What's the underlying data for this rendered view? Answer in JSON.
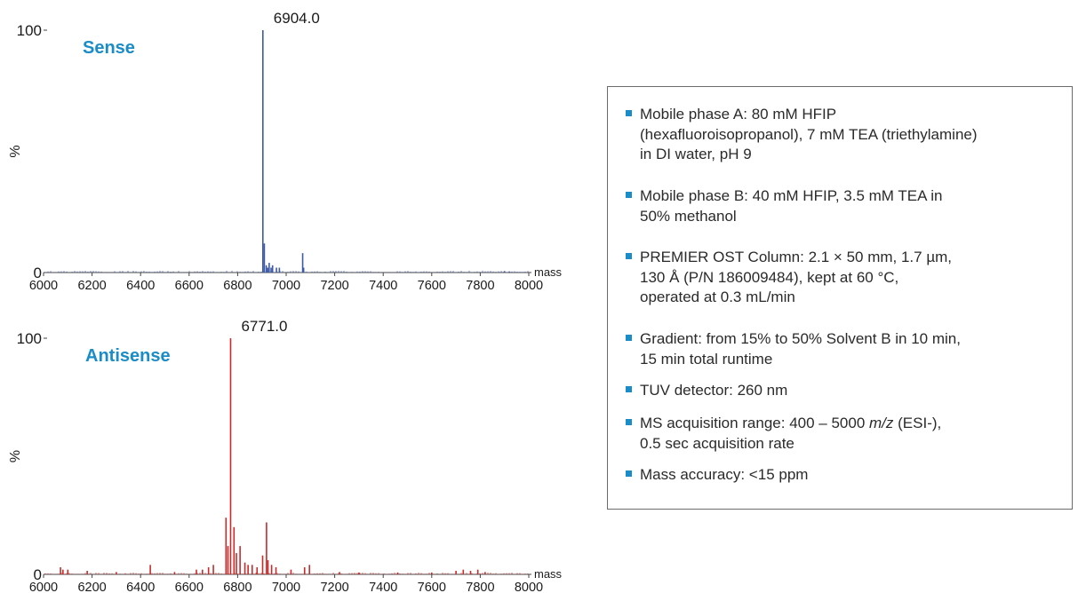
{
  "chart_data": [
    {
      "type": "line",
      "title": "Sense",
      "peak_label": "6904.0",
      "xlabel": "mass",
      "ylabel": "%",
      "xlim": [
        6000,
        8000
      ],
      "ylim": [
        0,
        100
      ],
      "y_ticks": [
        "0",
        "100"
      ],
      "x_ticks": [
        "6000",
        "6200",
        "6400",
        "6600",
        "6800",
        "7000",
        "7200",
        "7400",
        "7600",
        "7800",
        "8000"
      ],
      "color": "#3d5aa8",
      "title_color": "#1a8cc8",
      "peaks": [
        [
          6904,
          100
        ],
        [
          6910,
          12
        ],
        [
          6918,
          3
        ],
        [
          6924,
          2
        ],
        [
          6930,
          4
        ],
        [
          6938,
          2
        ],
        [
          6944,
          3
        ],
        [
          6960,
          2
        ],
        [
          6972,
          2
        ],
        [
          7068,
          8
        ],
        [
          7072,
          2
        ],
        [
          7900,
          0.6
        ],
        [
          7920,
          0.4
        ]
      ]
    },
    {
      "type": "line",
      "title": "Antisense",
      "peak_label": "6771.0",
      "xlabel": "mass",
      "ylabel": "%",
      "xlim": [
        6000,
        8000
      ],
      "ylim": [
        0,
        100
      ],
      "y_ticks": [
        "0",
        "100"
      ],
      "x_ticks": [
        "6000",
        "6200",
        "6400",
        "6600",
        "6800",
        "7000",
        "7200",
        "7400",
        "7600",
        "7800",
        "8000"
      ],
      "color": "#cc2a2a",
      "title_color": "#1a8cc8",
      "peaks": [
        [
          6771,
          100
        ],
        [
          6752,
          24
        ],
        [
          6760,
          12
        ],
        [
          6785,
          20
        ],
        [
          6795,
          9
        ],
        [
          6810,
          12
        ],
        [
          6830,
          5
        ],
        [
          6843,
          4
        ],
        [
          6860,
          4
        ],
        [
          6880,
          3
        ],
        [
          6903,
          8
        ],
        [
          6919,
          22
        ],
        [
          6925,
          6
        ],
        [
          6940,
          4
        ],
        [
          6958,
          3
        ],
        [
          7076,
          3
        ],
        [
          7096,
          4
        ],
        [
          6700,
          4
        ],
        [
          6680,
          3
        ],
        [
          6655,
          2
        ],
        [
          6630,
          2
        ],
        [
          6440,
          4
        ],
        [
          6070,
          3
        ],
        [
          6080,
          2
        ],
        [
          6100,
          2
        ],
        [
          6180,
          1.5
        ],
        [
          6300,
          1
        ],
        [
          6540,
          1
        ],
        [
          7020,
          2
        ],
        [
          7220,
          1
        ],
        [
          7300,
          0.8
        ],
        [
          7460,
          0.8
        ],
        [
          7600,
          0.8
        ],
        [
          7700,
          1.5
        ],
        [
          7730,
          2
        ],
        [
          7760,
          1.5
        ],
        [
          7790,
          2
        ],
        [
          7820,
          1
        ]
      ]
    }
  ],
  "parameters": [
    {
      "text": "Mobile phase A: 80 mM HFIP\n(hexafluoroisopropanol), 7 mM TEA (triethylamine)\nin DI water, pH 9"
    },
    {
      "text": "Mobile phase B: 40 mM HFIP, 3.5 mM TEA in\n50% methanol"
    },
    {
      "text": "PREMIER OST Column: 2.1 × 50 mm, 1.7 µm,\n130 Å (P/N 186009484), kept at 60 °C,\noperated at 0.3 mL/min"
    },
    {
      "text": "Gradient: from 15% to 50% Solvent B in 10 min,\n15 min total runtime"
    },
    {
      "text": "TUV detector: 260 nm"
    },
    {
      "before": "MS acquisition range: 400 – 5000 ",
      "italic": "m/z",
      "after": " (ESI-),\n0.5 sec acquisition rate"
    },
    {
      "text": "Mass accuracy: <15 ppm"
    }
  ],
  "accent_color": "#1a8cc8"
}
